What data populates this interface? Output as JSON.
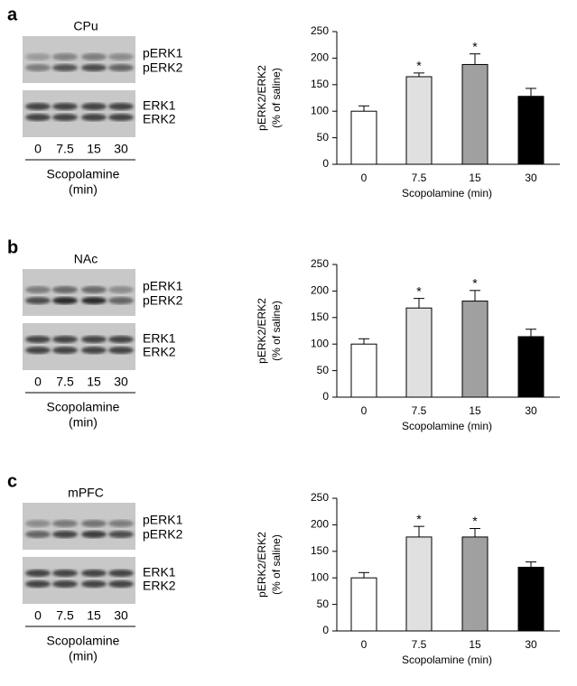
{
  "panels": [
    "a",
    "b",
    "c"
  ],
  "blots": [
    {
      "region": "CPu",
      "bands": [
        "pERK1",
        "pERK2",
        "ERK1",
        "ERK2"
      ],
      "lanes": [
        "0",
        "7.5",
        "15",
        "30"
      ],
      "xlabel": [
        "Scopolamine",
        "(min)"
      ]
    },
    {
      "region": "NAc",
      "bands": [
        "pERK1",
        "pERK2",
        "ERK1",
        "ERK2"
      ],
      "lanes": [
        "0",
        "7.5",
        "15",
        "30"
      ],
      "xlabel": [
        "Scopolamine",
        "(min)"
      ]
    },
    {
      "region": "mPFC",
      "bands": [
        "pERK1",
        "pERK2",
        "ERK1",
        "ERK2"
      ],
      "lanes": [
        "0",
        "7.5",
        "15",
        "30"
      ],
      "xlabel": [
        "Scopolamine",
        "(min)"
      ]
    }
  ],
  "chart_data": [
    {
      "type": "bar",
      "ylabel": [
        "pERK2/ERK2",
        "(% of saline)"
      ],
      "xlabel": "Scopolamine (min)",
      "categories": [
        "0",
        "7.5",
        "15",
        "30"
      ],
      "values": [
        100,
        165,
        188,
        128
      ],
      "errors": [
        10,
        7,
        20,
        15
      ],
      "markers": [
        null,
        "*",
        "*",
        null
      ],
      "colors": [
        "#ffffff",
        "#e0e0e0",
        "#a0a0a0",
        "#000000"
      ],
      "ylim": [
        0,
        250
      ],
      "yticks": [
        0,
        50,
        100,
        150,
        200,
        250
      ]
    },
    {
      "type": "bar",
      "ylabel": [
        "pERK2/ERK2",
        "(% of saline)"
      ],
      "xlabel": "Scopolamine (min)",
      "categories": [
        "0",
        "7.5",
        "15",
        "30"
      ],
      "values": [
        100,
        168,
        181,
        114
      ],
      "errors": [
        10,
        18,
        20,
        14
      ],
      "markers": [
        null,
        "*",
        "*",
        null
      ],
      "colors": [
        "#ffffff",
        "#e0e0e0",
        "#a0a0a0",
        "#000000"
      ],
      "ylim": [
        0,
        250
      ],
      "yticks": [
        0,
        50,
        100,
        150,
        200,
        250
      ]
    },
    {
      "type": "bar",
      "ylabel": [
        "pERK2/ERK2",
        "(% of saline)"
      ],
      "xlabel": "Scopolamine (min)",
      "categories": [
        "0",
        "7.5",
        "15",
        "30"
      ],
      "values": [
        100,
        177,
        177,
        120
      ],
      "errors": [
        10,
        20,
        16,
        10
      ],
      "markers": [
        null,
        "*",
        "*",
        null
      ],
      "colors": [
        "#ffffff",
        "#e0e0e0",
        "#a0a0a0",
        "#000000"
      ],
      "ylim": [
        0,
        250
      ],
      "yticks": [
        0,
        50,
        100,
        150,
        200,
        250
      ]
    }
  ]
}
